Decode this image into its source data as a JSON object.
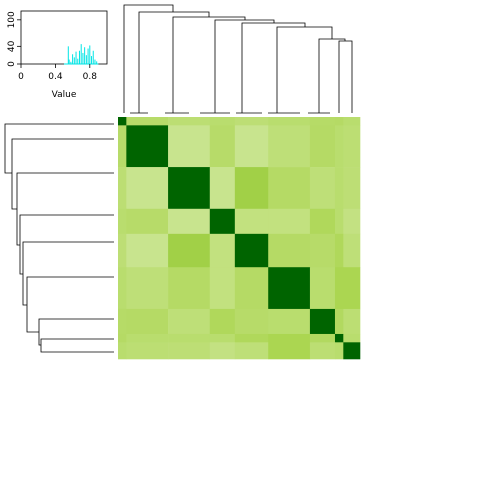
{
  "chart_data": [
    {
      "type": "heatmap",
      "clustered": true,
      "row_dendrogram": "left",
      "column_dendrogram": "top",
      "row_labels": [],
      "column_labels": [],
      "block_widths": [
        1,
        5,
        5,
        3,
        4,
        5,
        3,
        1,
        2
      ],
      "values": [
        [
          1.0,
          0.62,
          0.58,
          0.6,
          0.57,
          0.6,
          0.63,
          0.64,
          0.6
        ],
        [
          0.62,
          1.0,
          0.47,
          0.62,
          0.47,
          0.56,
          0.64,
          0.6,
          0.58
        ],
        [
          0.58,
          0.47,
          1.0,
          0.47,
          0.76,
          0.64,
          0.56,
          0.6,
          0.57
        ],
        [
          0.6,
          0.62,
          0.47,
          1.0,
          0.53,
          0.53,
          0.68,
          0.6,
          0.52
        ],
        [
          0.57,
          0.47,
          0.76,
          0.53,
          1.0,
          0.64,
          0.62,
          0.68,
          0.56
        ],
        [
          0.6,
          0.56,
          0.64,
          0.53,
          0.64,
          1.0,
          0.6,
          0.72,
          0.72
        ],
        [
          0.63,
          0.64,
          0.56,
          0.68,
          0.62,
          0.6,
          1.0,
          0.66,
          0.58
        ],
        [
          0.64,
          0.6,
          0.6,
          0.6,
          0.68,
          0.72,
          0.66,
          1.0,
          0.6
        ],
        [
          0.6,
          0.58,
          0.57,
          0.52,
          0.56,
          0.72,
          0.58,
          0.6,
          1.0
        ]
      ],
      "color_scale": {
        "low": "#ffffff",
        "mid": "#a8d44a",
        "high": "#006400",
        "range": [
          0,
          1
        ]
      }
    },
    {
      "type": "histogram",
      "role": "color-key",
      "xlabel": "Value",
      "ylabel": "",
      "xlim": [
        0,
        1
      ],
      "ylim": [
        0,
        120
      ],
      "x_ticks": [
        "0",
        "0.4",
        "0.8"
      ],
      "y_ticks": [
        "0",
        "40",
        "100"
      ],
      "line_color": "#00e5e5",
      "bins": [
        {
          "x": 0.55,
          "count": 40
        },
        {
          "x": 0.56,
          "count": 10
        },
        {
          "x": 0.58,
          "count": 5
        },
        {
          "x": 0.6,
          "count": 22
        },
        {
          "x": 0.62,
          "count": 15
        },
        {
          "x": 0.64,
          "count": 28
        },
        {
          "x": 0.66,
          "count": 12
        },
        {
          "x": 0.68,
          "count": 30
        },
        {
          "x": 0.7,
          "count": 45
        },
        {
          "x": 0.72,
          "count": 25
        },
        {
          "x": 0.74,
          "count": 38
        },
        {
          "x": 0.76,
          "count": 20
        },
        {
          "x": 0.78,
          "count": 35
        },
        {
          "x": 0.8,
          "count": 42
        },
        {
          "x": 0.82,
          "count": 18
        },
        {
          "x": 0.84,
          "count": 30
        },
        {
          "x": 0.86,
          "count": 10
        },
        {
          "x": 0.88,
          "count": 6
        }
      ]
    }
  ]
}
